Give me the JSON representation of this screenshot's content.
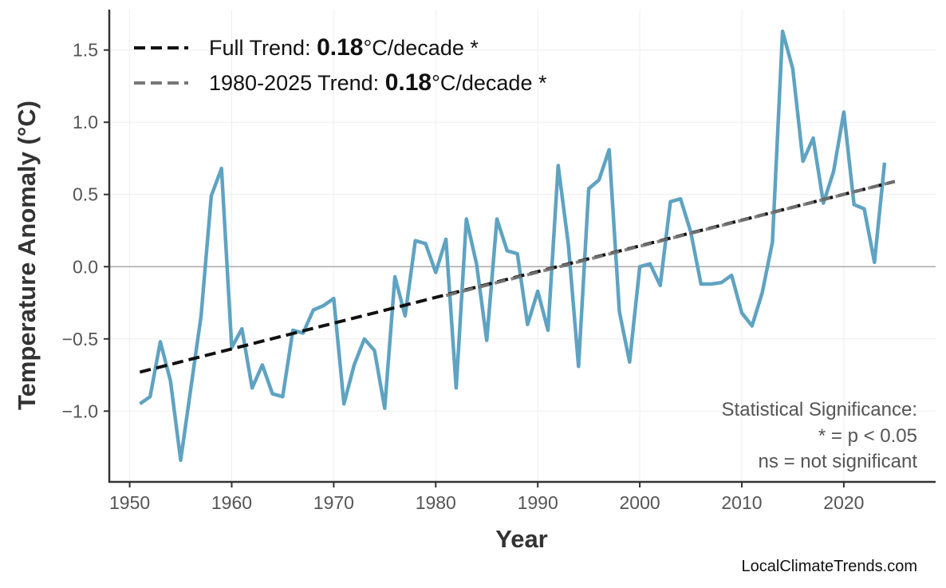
{
  "chart_data": {
    "type": "line",
    "xlabel": "Year",
    "ylabel": "Temperature Anomaly (°C)",
    "xlim": [
      1948,
      2029
    ],
    "ylim": [
      -1.49,
      1.78
    ],
    "xticks": [
      1950,
      1960,
      1970,
      1980,
      1990,
      2000,
      2010,
      2020
    ],
    "yticks": [
      -1.0,
      -0.5,
      0.0,
      0.5,
      1.0,
      1.5
    ],
    "ytick_labels": [
      "−1.0",
      "−0.5",
      "0.0",
      "0.5",
      "1.0",
      "1.5"
    ],
    "grid": true,
    "zero_line": true,
    "series": [
      {
        "color": "#5aa0c0",
        "x": [
          1951,
          1952,
          1953,
          1954,
          1955,
          1956,
          1957,
          1958,
          1959,
          1960,
          1961,
          1962,
          1963,
          1964,
          1965,
          1966,
          1967,
          1968,
          1969,
          1970,
          1971,
          1972,
          1973,
          1974,
          1975,
          1976,
          1977,
          1978,
          1979,
          1980,
          1981,
          1982,
          1983,
          1984,
          1985,
          1986,
          1987,
          1988,
          1989,
          1990,
          1991,
          1992,
          1993,
          1994,
          1995,
          1996,
          1997,
          1998,
          1999,
          2000,
          2001,
          2002,
          2003,
          2004,
          2005,
          2006,
          2007,
          2008,
          2009,
          2010,
          2011,
          2012,
          2013,
          2014,
          2015,
          2016,
          2017,
          2018,
          2019,
          2020,
          2021,
          2022,
          2023,
          2024
        ],
        "y": [
          -0.95,
          -0.9,
          -0.52,
          -0.79,
          -1.34,
          -0.84,
          -0.34,
          0.49,
          0.68,
          -0.56,
          -0.43,
          -0.84,
          -0.68,
          -0.88,
          -0.9,
          -0.44,
          -0.46,
          -0.3,
          -0.27,
          -0.22,
          -0.95,
          -0.68,
          -0.5,
          -0.58,
          -0.98,
          -0.07,
          -0.34,
          0.18,
          0.16,
          -0.04,
          0.19,
          -0.84,
          0.33,
          0.02,
          -0.51,
          0.33,
          0.11,
          0.09,
          -0.4,
          -0.17,
          -0.44,
          0.7,
          0.15,
          -0.69,
          0.54,
          0.6,
          0.81,
          -0.31,
          -0.66,
          0.0,
          0.02,
          -0.13,
          0.45,
          0.47,
          0.24,
          -0.12,
          -0.12,
          -0.11,
          -0.06,
          -0.32,
          -0.41,
          -0.18,
          0.17,
          1.63,
          1.37,
          0.73,
          0.89,
          0.44,
          0.66,
          1.07,
          0.43,
          0.4,
          0.03,
          0.72
        ]
      }
    ],
    "trends": [
      {
        "name": "Full Trend",
        "x": [
          1951,
          2025
        ],
        "y": [
          -0.73,
          0.59
        ],
        "color": "#111111",
        "rate": "0.18",
        "unit": "°C/decade",
        "sig": "*"
      },
      {
        "name": "1980-2025 Trend",
        "x": [
          1981,
          2025
        ],
        "y": [
          -0.2,
          0.59
        ],
        "color": "#777777",
        "rate": "0.18",
        "unit": "°C/decade",
        "sig": "*"
      }
    ],
    "legend_position": "top-left",
    "annotation": [
      "Statistical Significance:",
      "* = p < 0.05",
      "ns = not significant"
    ],
    "watermark": "LocalClimateTrends.com"
  }
}
